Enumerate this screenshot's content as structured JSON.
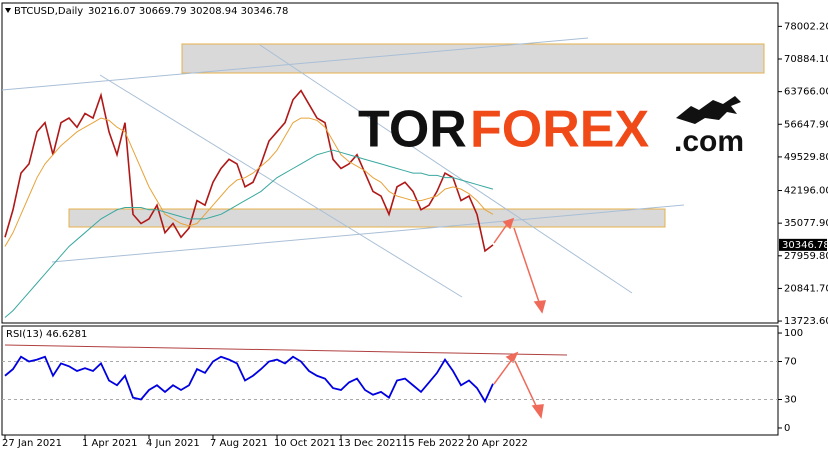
{
  "chart_data": [
    {
      "type": "line",
      "title": "BTCUSD,Daily",
      "subtitle": "30216.07 30669.79 30208.94 30346.78",
      "categories": [
        "27 Jan 2021",
        null,
        null,
        null,
        null,
        null,
        null,
        null,
        null,
        null,
        "1 Apr 2021",
        null,
        null,
        null,
        null,
        null,
        null,
        null,
        "4 Jun 2021",
        null,
        null,
        null,
        null,
        null,
        null,
        null,
        "7 Aug 2021",
        null,
        null,
        null,
        null,
        null,
        null,
        null,
        "10 Oct 2021",
        null,
        null,
        null,
        null,
        null,
        null,
        null,
        "13 Dec 2021",
        null,
        null,
        null,
        null,
        null,
        null,
        null,
        "15 Feb 2022",
        null,
        null,
        null,
        null,
        null,
        null,
        null,
        "20 Apr 2022",
        null,
        null,
        null
      ],
      "series": [
        {
          "color": "#b01818",
          "values": [
            32000,
            38000,
            46000,
            48000,
            55000,
            57000,
            50000,
            57000,
            58000,
            56000,
            59000,
            58000,
            63000,
            55000,
            50000,
            57000,
            37000,
            35000,
            36000,
            39000,
            33000,
            35000,
            32000,
            34000,
            40000,
            39000,
            44000,
            47000,
            49000,
            48000,
            43000,
            44000,
            48000,
            53000,
            55000,
            57000,
            62000,
            64000,
            61000,
            58000,
            57000,
            49000,
            47000,
            48000,
            50000,
            46000,
            42000,
            41000,
            37000,
            43000,
            44000,
            42000,
            38000,
            39000,
            42000,
            46000,
            45000,
            40000,
            41000,
            37000,
            29000,
            30346.78
          ]
        },
        {
          "color": "#e8a33a",
          "values": [
            30000,
            33000,
            37000,
            41000,
            45000,
            48000,
            50000,
            52000,
            53500,
            55000,
            56000,
            57000,
            58000,
            57500,
            56000,
            55000,
            51000,
            47000,
            43000,
            40000,
            37000,
            36000,
            35000,
            34500,
            35000,
            37000,
            39000,
            41000,
            43000,
            44500,
            45000,
            46000,
            47500,
            49000,
            51000,
            54000,
            57000,
            58000,
            58000,
            57500,
            56000,
            53000,
            50000,
            48500,
            47500,
            46500,
            45000,
            44000,
            42000,
            41000,
            40500,
            40000,
            40000,
            40500,
            41000,
            42500,
            43000,
            42500,
            41500,
            40000,
            38000,
            37000
          ]
        },
        {
          "color": "#3aa8a0",
          "values": [
            14500,
            16000,
            18000,
            20000,
            22000,
            24000,
            26000,
            28000,
            30000,
            31500,
            33000,
            34500,
            36000,
            37000,
            38000,
            38500,
            38500,
            38500,
            38000,
            38000,
            37500,
            37000,
            36500,
            36000,
            36000,
            36000,
            36500,
            37000,
            38000,
            39000,
            40000,
            41000,
            42000,
            43500,
            45000,
            46000,
            47000,
            48000,
            49000,
            50000,
            50500,
            51000,
            50500,
            50000,
            49500,
            49000,
            48500,
            48000,
            47500,
            47000,
            46500,
            46000,
            46000,
            45500,
            45500,
            45000,
            45000,
            44500,
            44000,
            43500,
            43000,
            42500
          ]
        }
      ],
      "last_price": 30346.78,
      "ylim": [
        13300,
        83100
      ],
      "yticks": [
        {
          "value": 78002.2,
          "label": "78002.20"
        },
        {
          "value": 70884.1,
          "label": "70884.10"
        },
        {
          "value": 63766,
          "label": "63766.00"
        },
        {
          "value": 56647.9,
          "label": "56647.90"
        },
        {
          "value": 49529.8,
          "label": "49529.80"
        },
        {
          "value": 42196,
          "label": "42196.00"
        },
        {
          "value": 35077.9,
          "label": "35077.90"
        },
        {
          "value": 27959.8,
          "label": "27959.80"
        },
        {
          "value": 20841.7,
          "label": "20841.70"
        },
        {
          "value": 13723.6,
          "label": "13723.60"
        }
      ]
    },
    {
      "type": "line",
      "title": "RSI(13) 46.6281",
      "series": [
        {
          "color": "#0000e0",
          "values": [
            55,
            62,
            75,
            70,
            72,
            75,
            55,
            68,
            65,
            60,
            63,
            60,
            68,
            50,
            45,
            55,
            32,
            30,
            40,
            45,
            38,
            45,
            40,
            45,
            62,
            58,
            70,
            75,
            72,
            68,
            50,
            55,
            62,
            70,
            72,
            68,
            75,
            70,
            60,
            55,
            52,
            42,
            40,
            48,
            52,
            40,
            35,
            38,
            32,
            50,
            52,
            45,
            38,
            48,
            58,
            72,
            60,
            45,
            50,
            42,
            28,
            46.6281
          ]
        }
      ],
      "ylim": [
        -7.4,
        107.4
      ],
      "yticks": [
        0,
        30,
        70,
        100
      ],
      "levels": [
        30,
        70
      ]
    }
  ],
  "logo": {
    "first": "TOR",
    "second": "FOREX",
    "suffix": ".com"
  }
}
